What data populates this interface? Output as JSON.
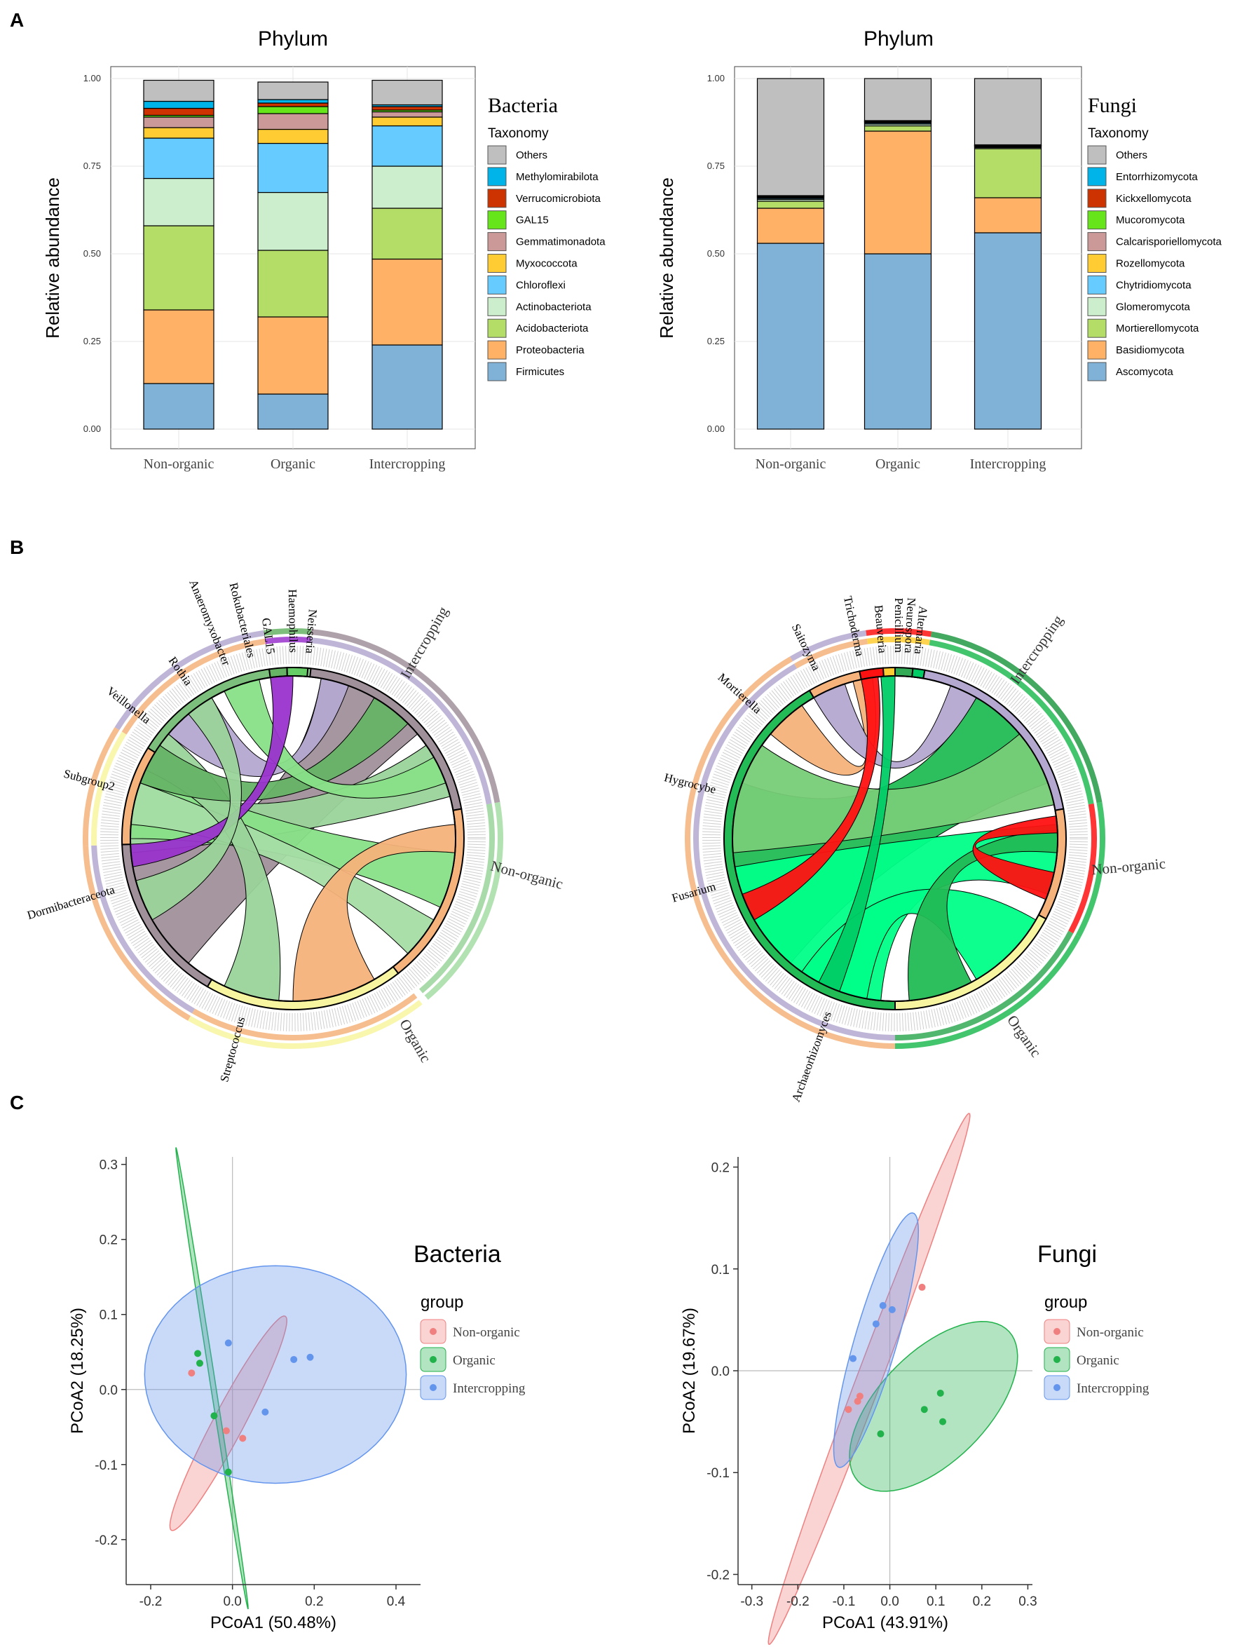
{
  "panels": {
    "a": "A",
    "b": "B",
    "c": "C"
  },
  "colors": {
    "bacteria": [
      "#bfbfbf",
      "#00b4e9",
      "#cc3300",
      "#66e51a",
      "#cc9999",
      "#ffcc33",
      "#66ccff",
      "#cceecc",
      "#b3dd66",
      "#ffb266",
      "#7fb2d6"
    ],
    "fungi": [
      "#bfbfbf",
      "#00b4e9",
      "#cc3300",
      "#66e51a",
      "#cc9999",
      "#ffcc33",
      "#66ccff",
      "#cceecc",
      "#b3dd66",
      "#ffb266",
      "#7fb2d6"
    ],
    "chord_bacteria": [
      "#b4a8d0",
      "#f5b27a",
      "#9ad39a",
      "#f8f5a0",
      "#a0909a",
      "#7cbf7c",
      "#66b366",
      "#9933cc",
      "#66cc66",
      "#88e088",
      "#a5dda5"
    ],
    "chord_fungi": [
      "#b4a8d0",
      "#f5b27a",
      "#22bb55",
      "#f8f5a0",
      "#ff1111",
      "#ffcc33",
      "#00ff88",
      "#77cc77",
      "#33aa55",
      "#229944",
      "#00cc66"
    ],
    "groups": {
      "non_organic": "#f08080",
      "organic": "#22b24c",
      "intercropping": "#6495ed"
    }
  },
  "chart_data": [
    {
      "id": "bacteria-bar",
      "type": "bar",
      "stacked": true,
      "title": "Phylum",
      "ylabel": "Relative abundance",
      "ylim": [
        0,
        1
      ],
      "yticks": [
        "0.00",
        "0.25",
        "0.50",
        "0.75",
        "1.00"
      ],
      "categories": [
        "Non-organic",
        "Organic",
        "Intercropping"
      ],
      "legend_title": "Bacteria",
      "legend_subtitle": "Taxonomy",
      "legend": [
        "Others",
        "Methylomirabilota",
        "Verrucomicrobiota",
        "GAL15",
        "Gemmatimonadota",
        "Myxococcota",
        "Chloroflexi",
        "Actinobacteriota",
        "Acidobacteriota",
        "Proteobacteria",
        "Firmicutes"
      ],
      "series_bottom_up": [
        {
          "name": "Firmicutes",
          "values": [
            0.13,
            0.1,
            0.24
          ]
        },
        {
          "name": "Proteobacteria",
          "values": [
            0.21,
            0.22,
            0.245
          ]
        },
        {
          "name": "Acidobacteriota",
          "values": [
            0.24,
            0.19,
            0.145
          ]
        },
        {
          "name": "Actinobacteriota",
          "values": [
            0.135,
            0.165,
            0.12
          ]
        },
        {
          "name": "Chloroflexi",
          "values": [
            0.115,
            0.14,
            0.115
          ]
        },
        {
          "name": "Myxococcota",
          "values": [
            0.03,
            0.04,
            0.025
          ]
        },
        {
          "name": "Gemmatimonadota",
          "values": [
            0.03,
            0.045,
            0.015
          ]
        },
        {
          "name": "GAL15",
          "values": [
            0.005,
            0.02,
            0.005
          ]
        },
        {
          "name": "Verrucomicrobiota",
          "values": [
            0.02,
            0.01,
            0.01
          ]
        },
        {
          "name": "Methylomirabilota",
          "values": [
            0.02,
            0.01,
            0.005
          ]
        },
        {
          "name": "Others",
          "values": [
            0.06,
            0.05,
            0.07
          ]
        }
      ]
    },
    {
      "id": "fungi-bar",
      "type": "bar",
      "stacked": true,
      "title": "Phylum",
      "ylabel": "Relative abundance",
      "ylim": [
        0,
        1
      ],
      "yticks": [
        "0.00",
        "0.25",
        "0.50",
        "0.75",
        "1.00"
      ],
      "categories": [
        "Non-organic",
        "Organic",
        "Intercropping"
      ],
      "legend_title": "Fungi",
      "legend_subtitle": "Taxonomy",
      "legend": [
        "Others",
        "Entorrhizomycota",
        "Kickxellomycota",
        "Mucoromycota",
        "Calcarisporiellomycota",
        "Rozellomycota",
        "Chytridiomycota",
        "Glomeromycota",
        "Mortierellomycota",
        "Basidiomycota",
        "Ascomycota"
      ],
      "series_bottom_up": [
        {
          "name": "Ascomycota",
          "values": [
            0.53,
            0.5,
            0.56
          ]
        },
        {
          "name": "Basidiomycota",
          "values": [
            0.1,
            0.35,
            0.1
          ]
        },
        {
          "name": "Mortierellomycota",
          "values": [
            0.02,
            0.015,
            0.14
          ]
        },
        {
          "name": "Glomeromycota",
          "values": [
            0.005,
            0.005,
            0.003
          ]
        },
        {
          "name": "Chytridiomycota",
          "values": [
            0.003,
            0.003,
            0.002
          ]
        },
        {
          "name": "Rozellomycota",
          "values": [
            0.002,
            0.002,
            0.002
          ]
        },
        {
          "name": "Calcarisporiellomycota",
          "values": [
            0.002,
            0.002,
            0.001
          ]
        },
        {
          "name": "Mucoromycota",
          "values": [
            0.002,
            0.001,
            0.001
          ]
        },
        {
          "name": "Kickxellomycota",
          "values": [
            0.001,
            0.001,
            0.001
          ]
        },
        {
          "name": "Entorrhizomycota",
          "values": [
            0.001,
            0.001,
            0.001
          ]
        },
        {
          "name": "Others",
          "values": [
            0.334,
            0.12,
            0.189
          ]
        }
      ]
    },
    {
      "id": "bacteria-chord",
      "type": "chord",
      "groups": [
        "Intercropping",
        "Non-organic",
        "Organic"
      ],
      "labels": [
        "Neisseria",
        "Haemophilus",
        "GAL15",
        "Rokubacteriales",
        "Anaeromyxobacter",
        "Rothia",
        "Veillonella",
        "Subgroup2",
        "Dormibacteraceota",
        "Streptococcus"
      ]
    },
    {
      "id": "fungi-chord",
      "type": "chord",
      "groups": [
        "Intercropping",
        "Non-organic",
        "Organic"
      ],
      "labels": [
        "Alternaria",
        "Neurospora",
        "Penicillium",
        "Beauveria",
        "Trichoderma",
        "Saitozyma",
        "Mortierella",
        "Hygrocybe",
        "Fusarium",
        "Archaeorhizomyces"
      ]
    },
    {
      "id": "bacteria-pcoa",
      "type": "scatter",
      "title": "Bacteria",
      "xlabel": "PCoA1 (50.48%)",
      "ylabel": "PCoA2 (18.25%)",
      "xlim": [
        -0.26,
        0.46
      ],
      "ylim": [
        -0.26,
        0.31
      ],
      "xticks": [
        -0.2,
        0.0,
        0.2,
        0.4
      ],
      "yticks": [
        -0.2,
        -0.1,
        0.0,
        0.1,
        0.2,
        0.3
      ],
      "xtick_labels": [
        "-0.2",
        "0.0",
        "0.2",
        "0.4"
      ],
      "ytick_labels": [
        "-0.2",
        "-0.1",
        "0.0",
        "0.1",
        "0.2",
        "0.3"
      ],
      "legend_title": "group",
      "series": [
        {
          "name": "Non-organic",
          "x": [
            -0.1,
            -0.015,
            0.025
          ],
          "y": [
            0.022,
            -0.055,
            -0.065
          ],
          "ellipse": {
            "cx": -0.01,
            "cy": -0.045,
            "rx": 0.2,
            "ry": 0.03,
            "angle": 45
          }
        },
        {
          "name": "Organic",
          "x": [
            -0.085,
            -0.08,
            -0.045,
            -0.01
          ],
          "y": [
            0.048,
            0.035,
            -0.035,
            -0.11
          ],
          "ellipse": {
            "cx": -0.05,
            "cy": 0.015,
            "rx": 0.32,
            "ry": 0.006,
            "angle": 106
          }
        },
        {
          "name": "Intercropping",
          "x": [
            -0.01,
            0.08,
            0.15,
            0.19
          ],
          "y": [
            0.062,
            -0.03,
            0.04,
            0.043
          ],
          "ellipse": {
            "cx": 0.105,
            "cy": 0.02,
            "rx": 0.32,
            "ry": 0.145,
            "angle": 0
          }
        }
      ]
    },
    {
      "id": "fungi-pcoa",
      "type": "scatter",
      "title": "Fungi",
      "xlabel": "PCoA1 (43.91%)",
      "ylabel": "PCoA2 (19.67%)",
      "xlim": [
        -0.33,
        0.31
      ],
      "ylim": [
        -0.21,
        0.21
      ],
      "xticks": [
        -0.3,
        -0.2,
        -0.1,
        0.0,
        0.1,
        0.2,
        0.3
      ],
      "yticks": [
        -0.2,
        -0.1,
        0.0,
        0.1,
        0.2
      ],
      "xtick_labels": [
        "-0.3",
        "-0.2",
        "-0.1",
        "0.0",
        "0.1",
        "0.2",
        "0.3"
      ],
      "ytick_labels": [
        "-0.2",
        "-0.1",
        "0.0",
        "0.1",
        "0.2"
      ],
      "legend_title": "group",
      "series": [
        {
          "name": "Non-organic",
          "x": [
            -0.09,
            -0.07,
            -0.065,
            0.07
          ],
          "y": [
            -0.038,
            -0.03,
            -0.025,
            0.082
          ],
          "ellipse": {
            "cx": -0.045,
            "cy": -0.008,
            "rx": 0.34,
            "ry": 0.022,
            "angle": 50
          }
        },
        {
          "name": "Organic",
          "x": [
            -0.02,
            0.075,
            0.11,
            0.115
          ],
          "y": [
            -0.062,
            -0.038,
            -0.022,
            -0.05
          ],
          "ellipse": {
            "cx": 0.095,
            "cy": -0.035,
            "rx": 0.19,
            "ry": 0.065,
            "angle": 17
          }
        },
        {
          "name": "Intercropping",
          "x": [
            -0.08,
            -0.03,
            -0.015,
            0.005
          ],
          "y": [
            0.012,
            0.046,
            0.064,
            0.06
          ],
          "ellipse": {
            "cx": -0.03,
            "cy": 0.03,
            "rx": 0.15,
            "ry": 0.04,
            "angle": 55
          }
        }
      ]
    }
  ]
}
